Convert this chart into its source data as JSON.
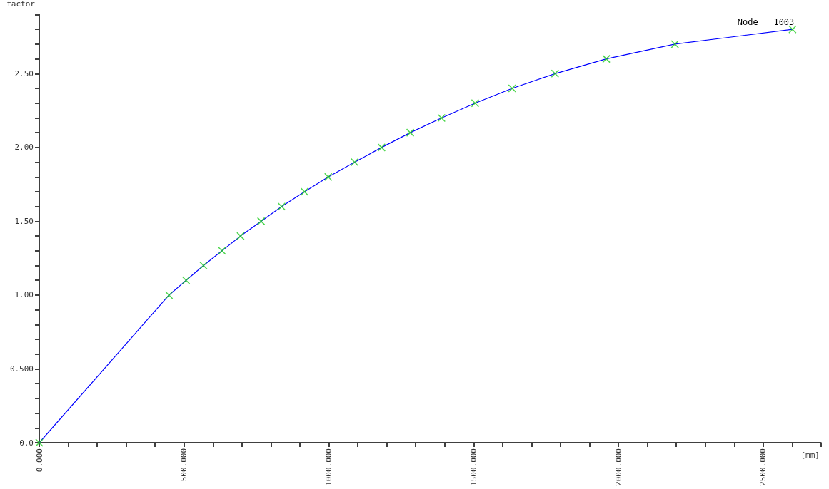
{
  "chart_data": {
    "type": "line",
    "xlabel": "[mm]",
    "ylabel": "factor",
    "xlim": [
      0,
      2700
    ],
    "ylim": [
      0,
      2.9
    ],
    "xticks": [
      {
        "value": 0,
        "label": "0.000"
      },
      {
        "value": 500,
        "label": "500.000"
      },
      {
        "value": 1000,
        "label": "1000.000"
      },
      {
        "value": 1500,
        "label": "1500.000"
      },
      {
        "value": 2000,
        "label": "2000.000"
      },
      {
        "value": 2500,
        "label": "2500.000"
      }
    ],
    "yticks": [
      {
        "value": 0,
        "label": "0.0"
      },
      {
        "value": 0.5,
        "label": "0.500"
      },
      {
        "value": 1,
        "label": "1.00"
      },
      {
        "value": 1.5,
        "label": "1.50"
      },
      {
        "value": 2,
        "label": "2.00"
      },
      {
        "value": 2.5,
        "label": "2.50"
      }
    ],
    "grid": false,
    "legend": false,
    "series": [
      {
        "name": "Node   1003",
        "color": "#0000ff",
        "marker": "none",
        "x": [
          0,
          448,
          507,
          567,
          631,
          695,
          766,
          837,
          916,
          998,
          1089,
          1182,
          1281,
          1389,
          1505,
          1633,
          1781,
          1958,
          2195,
          2601
        ],
        "values": [
          0,
          1.0,
          1.1,
          1.2,
          1.3,
          1.4,
          1.5,
          1.6,
          1.7,
          1.8,
          1.9,
          2.0,
          2.1,
          2.2,
          2.3,
          2.4,
          2.5,
          2.6,
          2.7,
          2.8
        ]
      },
      {
        "type": "scatter",
        "color": "#22cc22",
        "marker": "cross",
        "x": [
          0,
          448,
          507,
          567,
          631,
          695,
          766,
          837,
          916,
          998,
          1089,
          1182,
          1281,
          1389,
          1505,
          1633,
          1781,
          1958,
          2195,
          2601
        ],
        "values": [
          0,
          1.0,
          1.1,
          1.2,
          1.3,
          1.4,
          1.5,
          1.6,
          1.7,
          1.8,
          1.9,
          2.0,
          2.1,
          2.2,
          2.3,
          2.4,
          2.5,
          2.6,
          2.7,
          2.8
        ]
      }
    ]
  }
}
